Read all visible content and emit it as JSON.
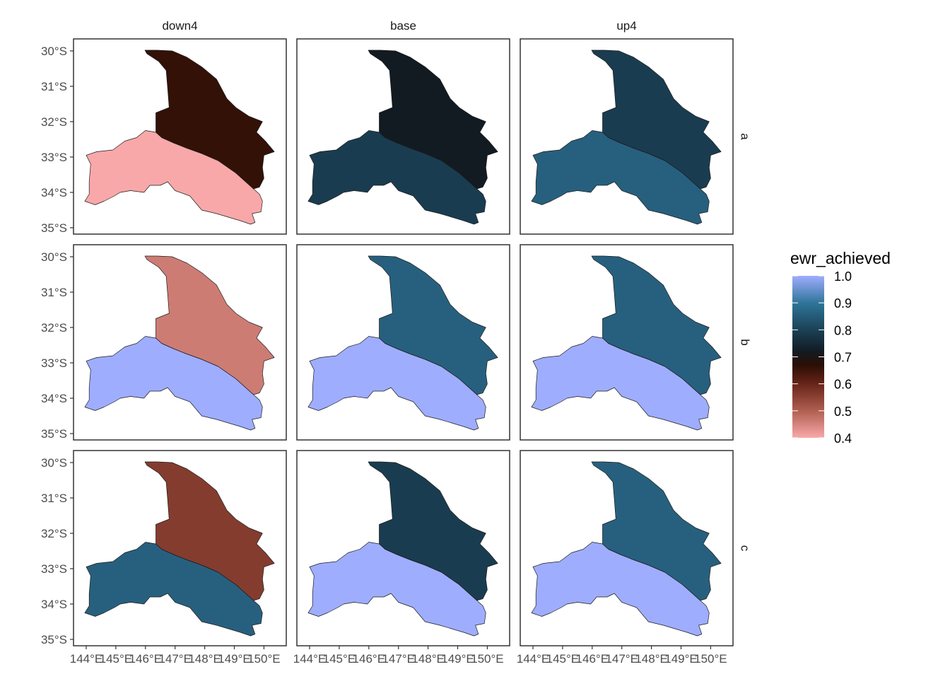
{
  "columns": [
    "down4",
    "base",
    "up4"
  ],
  "rows": [
    "a",
    "b",
    "c"
  ],
  "y_axis": {
    "labels": [
      "30°S",
      "31°S",
      "32°S",
      "33°S",
      "34°S",
      "35°S"
    ],
    "values": [
      -30,
      -31,
      -32,
      -33,
      -34,
      -35
    ]
  },
  "x_axis": {
    "labels": [
      "144°E",
      "145°E",
      "146°E",
      "147°E",
      "148°E",
      "149°E",
      "150°E"
    ],
    "values": [
      144,
      145,
      146,
      147,
      148,
      149,
      150
    ]
  },
  "legend": {
    "title": "ewr_achieved",
    "ticks": [
      "1.0",
      "0.9",
      "0.8",
      "0.7",
      "0.6",
      "0.5",
      "0.4"
    ],
    "range": [
      0.4,
      1.0
    ],
    "gradient": [
      {
        "v": 0.4,
        "c": "#f9a8a9"
      },
      {
        "v": 0.5,
        "c": "#b05f51"
      },
      {
        "v": 0.6,
        "c": "#672419"
      },
      {
        "v": 0.67,
        "c": "#2a0e04"
      },
      {
        "v": 0.72,
        "c": "#121b22"
      },
      {
        "v": 0.8,
        "c": "#1b4156"
      },
      {
        "v": 0.9,
        "c": "#2f7599"
      },
      {
        "v": 1.0,
        "c": "#9fadff"
      }
    ]
  },
  "chart_data": {
    "type": "map",
    "regions": [
      "north",
      "south"
    ],
    "panels": [
      {
        "row": "a",
        "col": "down4",
        "north": 0.66,
        "south": 0.4
      },
      {
        "row": "a",
        "col": "base",
        "north": 0.72,
        "south": 0.79
      },
      {
        "row": "a",
        "col": "up4",
        "north": 0.79,
        "south": 0.86
      },
      {
        "row": "b",
        "col": "down4",
        "north": 0.46,
        "south": 1.0
      },
      {
        "row": "b",
        "col": "base",
        "north": 0.86,
        "south": 1.0
      },
      {
        "row": "b",
        "col": "up4",
        "north": 0.86,
        "south": 1.0
      },
      {
        "row": "c",
        "col": "down4",
        "north": 0.56,
        "south": 0.86
      },
      {
        "row": "c",
        "col": "base",
        "north": 0.79,
        "south": 1.0
      },
      {
        "row": "c",
        "col": "up4",
        "north": 0.86,
        "south": 1.0
      }
    ]
  }
}
